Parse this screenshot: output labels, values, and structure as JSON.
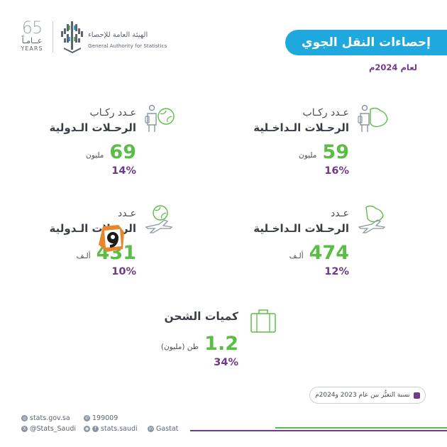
{
  "header": {
    "years_number": "65",
    "years_ar": "عــامـاً",
    "years_en": "YEARS",
    "org_name_ar": "الهيئة العامة للإحصاء",
    "org_name_en": "General Authority for Statistics"
  },
  "title": "إحصاءات النقل الجوي",
  "subtitle": "لعام 2024م",
  "stats": {
    "domestic_passengers": {
      "label1": "عـدد ركـاب",
      "label2": "الرحـلات الـداخـلية",
      "value": "59",
      "unit": "مليون",
      "change": "16%",
      "icon": "passenger-saudi-map-icon"
    },
    "international_passengers": {
      "label1": "عـدد ركـاب",
      "label2": "الرحـلات الـدولية",
      "value": "69",
      "unit": "مليون",
      "change": "14%",
      "icon": "passenger-globe-icon"
    },
    "domestic_flights": {
      "label1": "عـدد",
      "label2": "الرحـلات الـداخـلية",
      "value": "474",
      "unit": "ألـف",
      "change": "12%",
      "icon": "plane-saudi-map-icon"
    },
    "international_flights": {
      "label1": "عـدد",
      "label2": "الرحـلات الـدولية",
      "value": "431",
      "unit": "ألـف",
      "change": "10%",
      "icon": "plane-globe-icon"
    },
    "cargo": {
      "label1": "كميات الشحن",
      "value": "1.2",
      "unit": "طن (مليون)",
      "change": "34%",
      "icon": "suitcase-icon"
    }
  },
  "legend": {
    "text": "نسبة التغيُّر بين عام 2023 و2024م",
    "color": "#6f3a86"
  },
  "footer": {
    "website": "stats.gov.sa",
    "phone": "199009",
    "twitter": "@Stats_Saudi",
    "social": "stats.saudi",
    "linkedin": "Gastat"
  },
  "colors": {
    "accent_blue": "#1ea8dd",
    "accent_green": "#5bbd46",
    "accent_purple": "#6f3a86"
  }
}
